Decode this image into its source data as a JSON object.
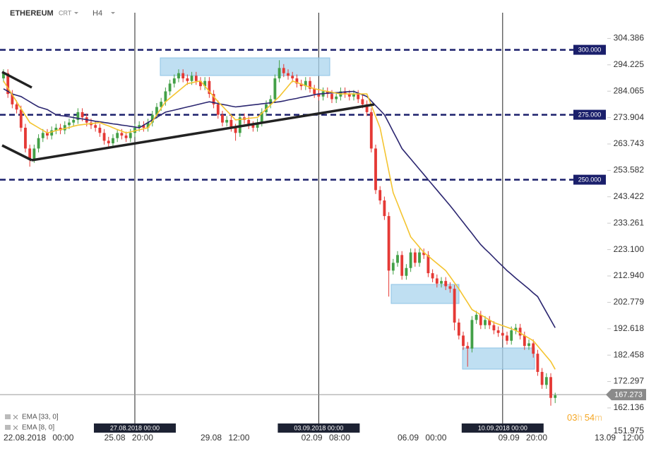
{
  "chart_data": {
    "type": "candlestick",
    "title": "ETHEREUM",
    "chart_style": "CRT",
    "timeframe": "H4",
    "candles": {
      "up_color": "#43a047",
      "down_color": "#e53935",
      "open": [
        289,
        291,
        283,
        279,
        277,
        270,
        262,
        258,
        262,
        266,
        268,
        267,
        269,
        270,
        269,
        271,
        272,
        273,
        276,
        274,
        272,
        271,
        270,
        268,
        265,
        264,
        266,
        268,
        267,
        266,
        268,
        270,
        271,
        270,
        272,
        275,
        278,
        280,
        284,
        287,
        289,
        291,
        289,
        288,
        290,
        288,
        286,
        288,
        283,
        279,
        275,
        272,
        273,
        270,
        268,
        274,
        273,
        271,
        270,
        272,
        276,
        279,
        281,
        289,
        293,
        291,
        290,
        289,
        287,
        286,
        288,
        285,
        283,
        282,
        284,
        283,
        281,
        282,
        284,
        283,
        282,
        283,
        281,
        279,
        276,
        262,
        246,
        242,
        236,
        215,
        218,
        221,
        213,
        216,
        222,
        218,
        222,
        221,
        214,
        212,
        210,
        211,
        209,
        208,
        195,
        190,
        186,
        185,
        196,
        198,
        194,
        196,
        194,
        192,
        191,
        190,
        188,
        192,
        193,
        190,
        186,
        187,
        183,
        176,
        171,
        174,
        166
      ],
      "high": [
        292.5,
        292.5,
        284.5,
        280.5,
        278.5,
        271.5,
        263.5,
        263.5,
        267.5,
        269.5,
        269.5,
        270.5,
        271.5,
        271.5,
        272.5,
        273.5,
        274.5,
        277.5,
        277.5,
        275.5,
        273.5,
        272.5,
        271.5,
        269.5,
        266.5,
        267.5,
        269.5,
        269.5,
        268.5,
        269.5,
        271.5,
        272.5,
        272.5,
        273.5,
        276.5,
        279.5,
        281.5,
        285.5,
        288.5,
        290.5,
        292.5,
        292.5,
        290.5,
        291.5,
        291.5,
        289.5,
        289.5,
        289.5,
        284.5,
        280.5,
        276.5,
        274.5,
        274.5,
        271.5,
        275.5,
        275.5,
        274.5,
        272.5,
        273.5,
        277.5,
        280.5,
        282.5,
        290.5,
        296,
        294.5,
        292.5,
        291.5,
        290.5,
        288.5,
        289.5,
        289.5,
        286.5,
        284.5,
        285.5,
        285.5,
        284.5,
        283.5,
        285.5,
        285.5,
        284.5,
        284.5,
        284.5,
        282.5,
        280.5,
        277.5,
        263.5,
        247.5,
        243.5,
        237.5,
        219.5,
        222.5,
        222.5,
        217.5,
        223.5,
        223.5,
        223.5,
        223.5,
        222.5,
        215.5,
        213.5,
        212.5,
        212.5,
        210.5,
        209.5,
        196.5,
        191.5,
        187.5,
        197.5,
        199.5,
        199.5,
        197.5,
        197.5,
        195.5,
        193.5,
        192.5,
        191.5,
        193.5,
        194.5,
        194.5,
        191.5,
        188.5,
        188.5,
        184.5,
        177.5,
        175.5,
        175.5,
        168
      ],
      "low": [
        287.5,
        281.5,
        277.5,
        275.5,
        268.5,
        260.5,
        255,
        256.5,
        260.5,
        264.5,
        265.5,
        265.5,
        267.5,
        267.5,
        267.5,
        269.5,
        270.5,
        271.5,
        272.5,
        270.5,
        269.5,
        268.5,
        266.5,
        263.5,
        262.5,
        262.5,
        264.5,
        265.5,
        264.5,
        264.5,
        266.5,
        268.5,
        268.5,
        268.5,
        270.5,
        273.5,
        276.5,
        278.5,
        282.5,
        285.5,
        287.5,
        287.5,
        286.5,
        286.5,
        286.5,
        284.5,
        284.5,
        281.5,
        277.5,
        273.5,
        270.5,
        270.5,
        268.5,
        265,
        266.5,
        271.5,
        269.5,
        268.5,
        268.5,
        270.5,
        274.5,
        277.5,
        279.5,
        287.5,
        289.5,
        288.5,
        287.5,
        285.5,
        284.5,
        284.5,
        283.5,
        281.5,
        280.5,
        280.5,
        281.5,
        279.5,
        279.5,
        280.5,
        281.5,
        280.5,
        280.5,
        279.5,
        277.5,
        274.5,
        260.5,
        244.5,
        240.5,
        234.5,
        205,
        213.5,
        216.5,
        211.5,
        211.5,
        214.5,
        216.5,
        216.5,
        219.5,
        212.5,
        210.5,
        208.5,
        208.5,
        207.5,
        206.5,
        192,
        188.5,
        184.5,
        178,
        183.5,
        194.5,
        192.5,
        192.5,
        192.5,
        190.5,
        189.5,
        188.5,
        186.5,
        186.5,
        190.5,
        188.5,
        184.5,
        184.5,
        181.5,
        174.5,
        169.5,
        169.5,
        163,
        164
      ],
      "close": [
        291,
        283,
        279,
        277,
        270,
        262,
        258,
        262,
        266,
        268,
        267,
        269,
        270,
        269,
        271,
        272,
        273,
        276,
        274,
        272,
        271,
        270,
        268,
        265,
        264,
        266,
        268,
        267,
        266,
        268,
        270,
        271,
        270,
        272,
        275,
        278,
        280,
        284,
        287,
        289,
        291,
        289,
        288,
        290,
        288,
        286,
        288,
        283,
        279,
        275,
        272,
        273,
        270,
        268,
        274,
        273,
        271,
        270,
        272,
        276,
        279,
        281,
        289,
        293,
        291,
        290,
        289,
        287,
        286,
        288,
        285,
        283,
        282,
        284,
        283,
        281,
        282,
        284,
        283,
        282,
        283,
        281,
        279,
        276,
        262,
        246,
        242,
        236,
        215,
        218,
        221,
        213,
        216,
        222,
        218,
        222,
        221,
        214,
        212,
        210,
        211,
        209,
        208,
        195,
        190,
        186,
        185,
        196,
        198,
        194,
        196,
        194,
        192,
        191,
        190,
        188,
        192,
        193,
        190,
        186,
        187,
        183,
        176,
        171,
        174,
        166,
        167
      ]
    },
    "series": [
      {
        "name": "EMA [33, 0]",
        "color": "#2b2670",
        "values": [
          285,
          284,
          283,
          282.5,
          282,
          281,
          280,
          279,
          278,
          277.5,
          277,
          276,
          275,
          274.7,
          274.5,
          274.2,
          273.9,
          273.6,
          273.4,
          273.1,
          272.8,
          272.5,
          272.3,
          272,
          271.8,
          271.5,
          271.3,
          271,
          270.8,
          270.5,
          270.3,
          270,
          271,
          272,
          273,
          274,
          275,
          276,
          276.4,
          276.8,
          277.2,
          277.6,
          278,
          278.4,
          278.8,
          279.2,
          279.6,
          280,
          279.7,
          279.3,
          279,
          278.7,
          278.3,
          278,
          278.2,
          278.4,
          278.6,
          278.8,
          279,
          279.2,
          279.4,
          279.6,
          279.8,
          280,
          280.3,
          280.7,
          281,
          281.3,
          281.7,
          282,
          282.3,
          282.7,
          283,
          283.1,
          283.3,
          283.4,
          283.5,
          283.6,
          283.8,
          283.9,
          284,
          283.3,
          282.7,
          282,
          280.3,
          278.5,
          276.8,
          275,
          271.8,
          268.5,
          265.3,
          262,
          260,
          258,
          256,
          254,
          252,
          250,
          248,
          246,
          244,
          242,
          240,
          237.9,
          235.7,
          233.6,
          231.4,
          229.3,
          227.1,
          225,
          223.3,
          221.7,
          220,
          218.3,
          216.7,
          215,
          213.6,
          212.1,
          210.7,
          209.3,
          207.9,
          206.4,
          205,
          202,
          199,
          196,
          193
        ]
      },
      {
        "name": "EMA [8, 0]",
        "color": "#f4c430",
        "values": [
          288,
          285.3,
          282.7,
          280,
          277.3,
          274.7,
          272,
          271,
          270,
          269,
          268,
          268.4,
          268.9,
          269.3,
          269.7,
          270.1,
          270.6,
          271,
          271.2,
          271.4,
          271.6,
          271.8,
          272,
          271.3,
          270.7,
          270,
          269.3,
          268.7,
          268,
          268.4,
          268.8,
          269.2,
          269.6,
          270,
          272.5,
          275,
          277.5,
          280,
          281.4,
          282.8,
          284.2,
          285.6,
          287,
          287.3,
          287.7,
          288,
          286,
          284,
          282,
          280,
          278.3,
          276.5,
          274.8,
          273,
          273.2,
          273.4,
          273.6,
          273.8,
          274,
          275.6,
          277.2,
          278.8,
          280.4,
          282,
          284,
          286,
          288,
          287.4,
          286.8,
          286.2,
          285.6,
          285,
          284.7,
          284.3,
          284,
          283.7,
          283.3,
          283,
          283,
          283,
          283,
          283,
          283,
          283,
          278.7,
          274.3,
          270,
          261.7,
          253.3,
          245,
          240.8,
          236.5,
          232.3,
          228,
          226,
          224,
          222,
          220.6,
          219.2,
          217.8,
          216.4,
          215,
          212.7,
          210.3,
          208,
          205.3,
          202.7,
          200,
          199,
          198,
          197,
          196,
          195,
          194.4,
          193.8,
          193.2,
          192.6,
          192,
          191,
          190,
          189,
          188,
          186,
          184,
          182,
          180,
          177
        ]
      }
    ],
    "xlim": [
      -0.8,
      137.9
    ],
    "xticks": [
      {
        "value": 0,
        "label": "22.08.2018 00:00"
      },
      {
        "value": 23,
        "label": "25.08 20:00"
      },
      {
        "value": 45,
        "label": "29.08 12:00"
      },
      {
        "value": 68,
        "label": "02.09 08:00"
      },
      {
        "value": 90,
        "label": "06.09 00:00"
      },
      {
        "value": 113,
        "label": "09.09 20:00"
      },
      {
        "value": 135,
        "label": "13.09 12:00"
      }
    ],
    "ylim": [
      148,
      317
    ],
    "yticks": [
      304.386,
      294.225,
      284.065,
      273.904,
      263.743,
      253.582,
      243.422,
      233.261,
      {
        "value": 223.1,
        "label": "223.100"
      },
      {
        "value": 212.94,
        "label": "212.940"
      },
      202.779,
      192.618,
      182.458,
      172.297,
      162.136,
      151.975
    ],
    "hlines": [
      {
        "value": 300,
        "label": "300.000"
      },
      {
        "value": 275,
        "label": "275.000"
      },
      {
        "value": 250,
        "label": "250.000"
      }
    ],
    "vlines": [
      {
        "value": 30,
        "label": "27.08.2018 00:00"
      },
      {
        "value": 72,
        "label": "03.09.2018 00:00"
      },
      {
        "value": 114,
        "label": "10.09.2018 00:00"
      }
    ],
    "last_price": 167.273,
    "countdown": [
      "03",
      "h",
      "54",
      "m"
    ]
  }
}
